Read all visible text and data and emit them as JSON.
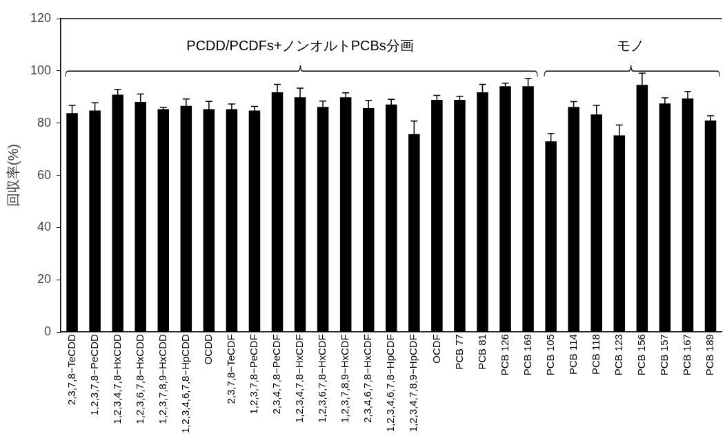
{
  "chart_data": {
    "type": "bar",
    "ylabel": "回収率(%)",
    "categories": [
      "2,3,7,8−TeCDD",
      "1,2,3,7,8−PeCDD",
      "1,2,3,4,7,8−HxCDD",
      "1,2,3,6,7,8−HxCDD",
      "1,2,3,7,8,9−HxCDD",
      "1,2,3,4,6,7,8−HpCDD",
      "OCDD",
      "2,3,7,8−TeCDF",
      "1,2,3,7,8−PeCDF",
      "2,3,4,7,8−PeCDF",
      "1,2,3,4,7,8−HxCDF",
      "1,2,3,6,7,8−HxCDF",
      "1,2,3,7,8,9−HxCDF",
      "2,3,4,6,7,8−HxCDF",
      "1,2,3,4,6,7,8−HpCDF",
      "1,2,3,4,7,8,9−HpCDF",
      "OCDF",
      "PCB 77",
      "PCB 81",
      "PCB 126",
      "PCB 169",
      "PCB 105",
      "PCB 114",
      "PCB 118",
      "PCB 123",
      "PCB 156",
      "PCB 157",
      "PCB 167",
      "PCB 189"
    ],
    "values": [
      83.8,
      84.8,
      90.9,
      88.1,
      85.3,
      86.6,
      85.3,
      85.3,
      84.8,
      91.8,
      89.9,
      86.2,
      89.9,
      85.7,
      87.1,
      75.8,
      88.9,
      88.9,
      91.8,
      94.1,
      94.1,
      73,
      86.2,
      83.3,
      75.3,
      94.6,
      87.5,
      89.4,
      81
    ],
    "errors": [
      3,
      3,
      2,
      3,
      0.7,
      2.6,
      3,
      2,
      1.6,
      3,
      3.5,
      2.2,
      1.7,
      3,
      2,
      5,
      1.7,
      1.3,
      3,
      1.2,
      3,
      3,
      2,
      3.5,
      4,
      4.5,
      2.2,
      2.7,
      1.8
    ],
    "color": "#000000",
    "ylim": [
      0,
      120
    ],
    "yticks": [
      0,
      20,
      40,
      60,
      80,
      100,
      120
    ],
    "annotations": [
      "PCDD/PCDFs+ノンオルトPCBs分画",
      "モノ"
    ],
    "grid": false,
    "legend": false
  }
}
